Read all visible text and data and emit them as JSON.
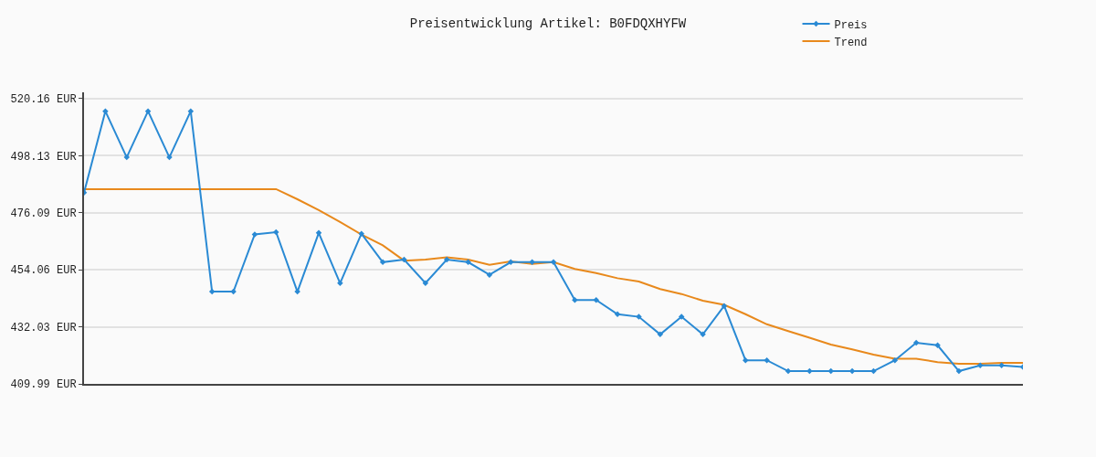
{
  "chart_data": {
    "type": "line",
    "title": "Preisentwicklung Artikel: B0FDQXHYFW",
    "categories": [
      null,
      null,
      null,
      null,
      null,
      null,
      null,
      null,
      null,
      null,
      null,
      null,
      null,
      null,
      null,
      null,
      null,
      null,
      null,
      null,
      null,
      null,
      null,
      null,
      null,
      null,
      null,
      null,
      null,
      null,
      null,
      null,
      null,
      null,
      null,
      null,
      null,
      null,
      null,
      null,
      null,
      null,
      null,
      null,
      null
    ],
    "series": [
      {
        "name": "Preis",
        "color": "#2a8ad4",
        "marker": "diamond",
        "values": [
          483.9,
          515.3,
          497.5,
          515.3,
          497.5,
          515.3,
          445.6,
          445.6,
          467.7,
          468.6,
          445.6,
          468.3,
          448.9,
          468.0,
          457.0,
          458.0,
          448.9,
          458.0,
          457.0,
          452.1,
          457.0,
          457.0,
          457.0,
          442.4,
          442.4,
          436.9,
          435.9,
          429.1,
          435.9,
          429.1,
          440.1,
          419.1,
          419.1,
          414.9,
          414.9,
          414.9,
          414.9,
          414.9,
          419.1,
          425.9,
          424.9,
          414.9,
          417.1,
          417.1,
          416.5
        ]
      },
      {
        "name": "Trend",
        "color": "#e8891c",
        "marker": "none",
        "values": [
          485.2,
          485.2,
          485.2,
          485.2,
          485.2,
          485.2,
          485.2,
          485.2,
          485.2,
          485.2,
          481.3,
          477.1,
          472.5,
          467.7,
          463.5,
          457.6,
          458.0,
          458.9,
          458.0,
          456.0,
          457.3,
          456.3,
          457.0,
          454.4,
          452.8,
          450.8,
          449.5,
          446.6,
          444.7,
          442.1,
          440.5,
          436.9,
          433.0,
          430.4,
          427.8,
          425.2,
          423.3,
          421.3,
          419.7,
          419.7,
          418.4,
          417.8,
          417.8,
          418.1,
          418.1
        ]
      }
    ],
    "ylim": [
      409.99,
      522.6
    ],
    "yticks": [
      {
        "value": 409.99,
        "label": "409.99 EUR"
      },
      {
        "value": 432.03,
        "label": "432.03 EUR"
      },
      {
        "value": 454.06,
        "label": "454.06 EUR"
      },
      {
        "value": 476.09,
        "label": "476.09 EUR"
      },
      {
        "value": 498.13,
        "label": "498.13 EUR"
      },
      {
        "value": 520.16,
        "label": "520.16 EUR"
      }
    ],
    "grid": "y",
    "legend": "top right",
    "tick_labels": "y",
    "line_style": "solid"
  }
}
